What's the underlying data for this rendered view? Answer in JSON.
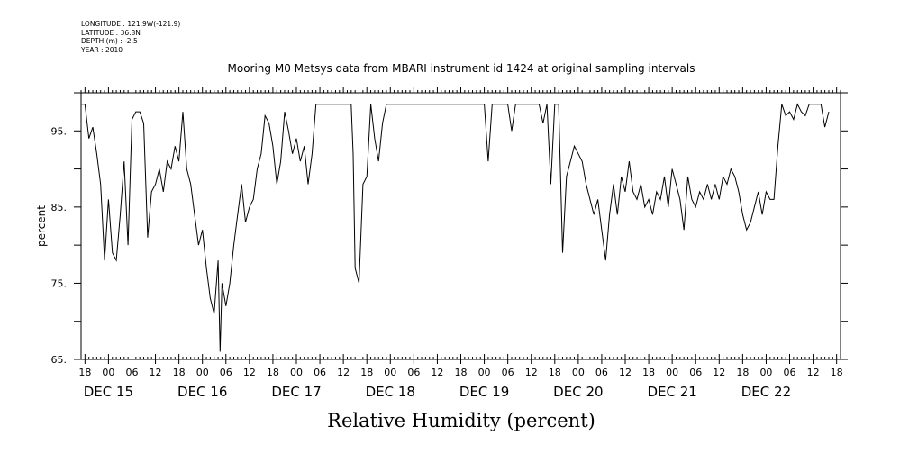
{
  "meta": {
    "longitude": "LONGITUDE : 121.9W(-121.9)",
    "latitude": "LATITUDE : 36.8N",
    "depth": "DEPTH (m) : -2.5",
    "year": "YEAR : 2010"
  },
  "chart_data": {
    "type": "line",
    "title": "Mooring M0 Metsys data from MBARI instrument id 1424 at original sampling intervals",
    "xlabel": "Relative Humidity (percent)",
    "ylabel": "percent",
    "ylim": [
      65,
      100
    ],
    "yticks": [
      65,
      75,
      85,
      95
    ],
    "ytick_labels": [
      "65.",
      "75.",
      "85.",
      "95."
    ],
    "xlim": [
      "2010-12-14T17:00",
      "2010-12-22T19:00"
    ],
    "x_hour_ticks": [
      "18",
      "00",
      "06",
      "12",
      "18",
      "00",
      "06",
      "12",
      "18",
      "00",
      "06",
      "12",
      "18",
      "00",
      "06",
      "12",
      "18",
      "00",
      "06",
      "12",
      "18",
      "00",
      "06",
      "12",
      "18",
      "00",
      "06",
      "12",
      "18",
      "00",
      "06",
      "12",
      "18"
    ],
    "x_day_labels": [
      {
        "label": "DEC 15",
        "x": "2010-12-15T00:00"
      },
      {
        "label": "DEC 16",
        "x": "2010-12-16T00:00"
      },
      {
        "label": "DEC 17",
        "x": "2010-12-17T00:00"
      },
      {
        "label": "DEC 18",
        "x": "2010-12-18T00:00"
      },
      {
        "label": "DEC 19",
        "x": "2010-12-19T00:00"
      },
      {
        "label": "DEC 20",
        "x": "2010-12-20T00:00"
      },
      {
        "label": "DEC 21",
        "x": "2010-12-21T00:00"
      },
      {
        "label": "DEC 22",
        "x": "2010-12-22T00:00"
      }
    ],
    "grid": false,
    "series": [
      {
        "color": "#000000",
        "points": [
          [
            "2010-12-14T17:00",
            98.5
          ],
          [
            "2010-12-14T18:00",
            98.5
          ],
          [
            "2010-12-14T19:00",
            94
          ],
          [
            "2010-12-14T20:00",
            95.5
          ],
          [
            "2010-12-14T21:00",
            92
          ],
          [
            "2010-12-14T22:00",
            88
          ],
          [
            "2010-12-14T23:00",
            78
          ],
          [
            "2010-12-15T00:00",
            86
          ],
          [
            "2010-12-15T01:00",
            79
          ],
          [
            "2010-12-15T02:00",
            78
          ],
          [
            "2010-12-15T03:00",
            84
          ],
          [
            "2010-12-15T04:00",
            91
          ],
          [
            "2010-12-15T05:00",
            80
          ],
          [
            "2010-12-15T06:00",
            96.5
          ],
          [
            "2010-12-15T07:00",
            97.5
          ],
          [
            "2010-12-15T08:00",
            97.5
          ],
          [
            "2010-12-15T09:00",
            96
          ],
          [
            "2010-12-15T10:00",
            81
          ],
          [
            "2010-12-15T11:00",
            87
          ],
          [
            "2010-12-15T12:00",
            88
          ],
          [
            "2010-12-15T13:00",
            90
          ],
          [
            "2010-12-15T14:00",
            87
          ],
          [
            "2010-12-15T15:00",
            91
          ],
          [
            "2010-12-15T16:00",
            90
          ],
          [
            "2010-12-15T17:00",
            93
          ],
          [
            "2010-12-15T18:00",
            91
          ],
          [
            "2010-12-15T19:00",
            97.5
          ],
          [
            "2010-12-15T20:00",
            90
          ],
          [
            "2010-12-15T21:00",
            88
          ],
          [
            "2010-12-15T22:00",
            84
          ],
          [
            "2010-12-15T23:00",
            80
          ],
          [
            "2010-12-16T00:00",
            82
          ],
          [
            "2010-12-16T01:00",
            77
          ],
          [
            "2010-12-16T02:00",
            73
          ],
          [
            "2010-12-16T03:00",
            71
          ],
          [
            "2010-12-16T04:00",
            78
          ],
          [
            "2010-12-16T04:30",
            66
          ],
          [
            "2010-12-16T05:00",
            75
          ],
          [
            "2010-12-16T06:00",
            72
          ],
          [
            "2010-12-16T07:00",
            75
          ],
          [
            "2010-12-16T08:00",
            80
          ],
          [
            "2010-12-16T09:00",
            84
          ],
          [
            "2010-12-16T10:00",
            88
          ],
          [
            "2010-12-16T11:00",
            83
          ],
          [
            "2010-12-16T12:00",
            85
          ],
          [
            "2010-12-16T13:00",
            86
          ],
          [
            "2010-12-16T14:00",
            90
          ],
          [
            "2010-12-16T15:00",
            92
          ],
          [
            "2010-12-16T16:00",
            97
          ],
          [
            "2010-12-16T17:00",
            96
          ],
          [
            "2010-12-16T18:00",
            93
          ],
          [
            "2010-12-16T19:00",
            88
          ],
          [
            "2010-12-16T20:00",
            91
          ],
          [
            "2010-12-16T21:00",
            97.5
          ],
          [
            "2010-12-16T22:00",
            95
          ],
          [
            "2010-12-16T23:00",
            92
          ],
          [
            "2010-12-17T00:00",
            94
          ],
          [
            "2010-12-17T01:00",
            91
          ],
          [
            "2010-12-17T02:00",
            93
          ],
          [
            "2010-12-17T03:00",
            88
          ],
          [
            "2010-12-17T04:00",
            92
          ],
          [
            "2010-12-17T05:00",
            98.5
          ],
          [
            "2010-12-17T06:00",
            98.5
          ],
          [
            "2010-12-17T14:00",
            98.5
          ],
          [
            "2010-12-17T14:30",
            92
          ],
          [
            "2010-12-17T15:00",
            77
          ],
          [
            "2010-12-17T16:00",
            75
          ],
          [
            "2010-12-17T17:00",
            88
          ],
          [
            "2010-12-17T18:00",
            89
          ],
          [
            "2010-12-17T19:00",
            98.5
          ],
          [
            "2010-12-17T20:00",
            94
          ],
          [
            "2010-12-17T21:00",
            91
          ],
          [
            "2010-12-17T22:00",
            96
          ],
          [
            "2010-12-17T23:00",
            98.5
          ],
          [
            "2010-12-19T00:00",
            98.5
          ],
          [
            "2010-12-19T01:00",
            91
          ],
          [
            "2010-12-19T02:00",
            98.5
          ],
          [
            "2010-12-19T06:00",
            98.5
          ],
          [
            "2010-12-19T07:00",
            95
          ],
          [
            "2010-12-19T08:00",
            98.5
          ],
          [
            "2010-12-19T14:00",
            98.5
          ],
          [
            "2010-12-19T15:00",
            96
          ],
          [
            "2010-12-19T16:00",
            98.5
          ],
          [
            "2010-12-19T17:00",
            88
          ],
          [
            "2010-12-19T18:00",
            98.5
          ],
          [
            "2010-12-19T19:00",
            98.5
          ],
          [
            "2010-12-19T20:00",
            79
          ],
          [
            "2010-12-19T21:00",
            89
          ],
          [
            "2010-12-19T22:00",
            91
          ],
          [
            "2010-12-19T23:00",
            93
          ],
          [
            "2010-12-20T00:00",
            92
          ],
          [
            "2010-12-20T01:00",
            91
          ],
          [
            "2010-12-20T02:00",
            88
          ],
          [
            "2010-12-20T03:00",
            86
          ],
          [
            "2010-12-20T04:00",
            84
          ],
          [
            "2010-12-20T05:00",
            86
          ],
          [
            "2010-12-20T06:00",
            82
          ],
          [
            "2010-12-20T07:00",
            78
          ],
          [
            "2010-12-20T08:00",
            84
          ],
          [
            "2010-12-20T09:00",
            88
          ],
          [
            "2010-12-20T10:00",
            84
          ],
          [
            "2010-12-20T11:00",
            89
          ],
          [
            "2010-12-20T12:00",
            87
          ],
          [
            "2010-12-20T13:00",
            91
          ],
          [
            "2010-12-20T14:00",
            87
          ],
          [
            "2010-12-20T15:00",
            86
          ],
          [
            "2010-12-20T16:00",
            88
          ],
          [
            "2010-12-20T17:00",
            85
          ],
          [
            "2010-12-20T18:00",
            86
          ],
          [
            "2010-12-20T19:00",
            84
          ],
          [
            "2010-12-20T20:00",
            87
          ],
          [
            "2010-12-20T21:00",
            86
          ],
          [
            "2010-12-20T22:00",
            89
          ],
          [
            "2010-12-20T23:00",
            85
          ],
          [
            "2010-12-21T00:00",
            90
          ],
          [
            "2010-12-21T01:00",
            88
          ],
          [
            "2010-12-21T02:00",
            86
          ],
          [
            "2010-12-21T03:00",
            82
          ],
          [
            "2010-12-21T04:00",
            89
          ],
          [
            "2010-12-21T05:00",
            86
          ],
          [
            "2010-12-21T06:00",
            85
          ],
          [
            "2010-12-21T07:00",
            87
          ],
          [
            "2010-12-21T08:00",
            86
          ],
          [
            "2010-12-21T09:00",
            88
          ],
          [
            "2010-12-21T10:00",
            86
          ],
          [
            "2010-12-21T11:00",
            88
          ],
          [
            "2010-12-21T12:00",
            86
          ],
          [
            "2010-12-21T13:00",
            89
          ],
          [
            "2010-12-21T14:00",
            88
          ],
          [
            "2010-12-21T15:00",
            90
          ],
          [
            "2010-12-21T16:00",
            89
          ],
          [
            "2010-12-21T17:00",
            87
          ],
          [
            "2010-12-21T18:00",
            84
          ],
          [
            "2010-12-21T19:00",
            82
          ],
          [
            "2010-12-21T20:00",
            83
          ],
          [
            "2010-12-21T21:00",
            85
          ],
          [
            "2010-12-21T22:00",
            87
          ],
          [
            "2010-12-21T23:00",
            84
          ],
          [
            "2010-12-22T00:00",
            87
          ],
          [
            "2010-12-22T01:00",
            86
          ],
          [
            "2010-12-22T02:00",
            86
          ],
          [
            "2010-12-22T03:00",
            93
          ],
          [
            "2010-12-22T04:00",
            98.5
          ],
          [
            "2010-12-22T05:00",
            97
          ],
          [
            "2010-12-22T06:00",
            97.5
          ],
          [
            "2010-12-22T07:00",
            96.5
          ],
          [
            "2010-12-22T08:00",
            98.5
          ],
          [
            "2010-12-22T09:00",
            97.5
          ],
          [
            "2010-12-22T10:00",
            97
          ],
          [
            "2010-12-22T11:00",
            98.5
          ],
          [
            "2010-12-22T14:00",
            98.5
          ],
          [
            "2010-12-22T15:00",
            95.5
          ],
          [
            "2010-12-22T16:00",
            97.5
          ]
        ]
      }
    ]
  }
}
